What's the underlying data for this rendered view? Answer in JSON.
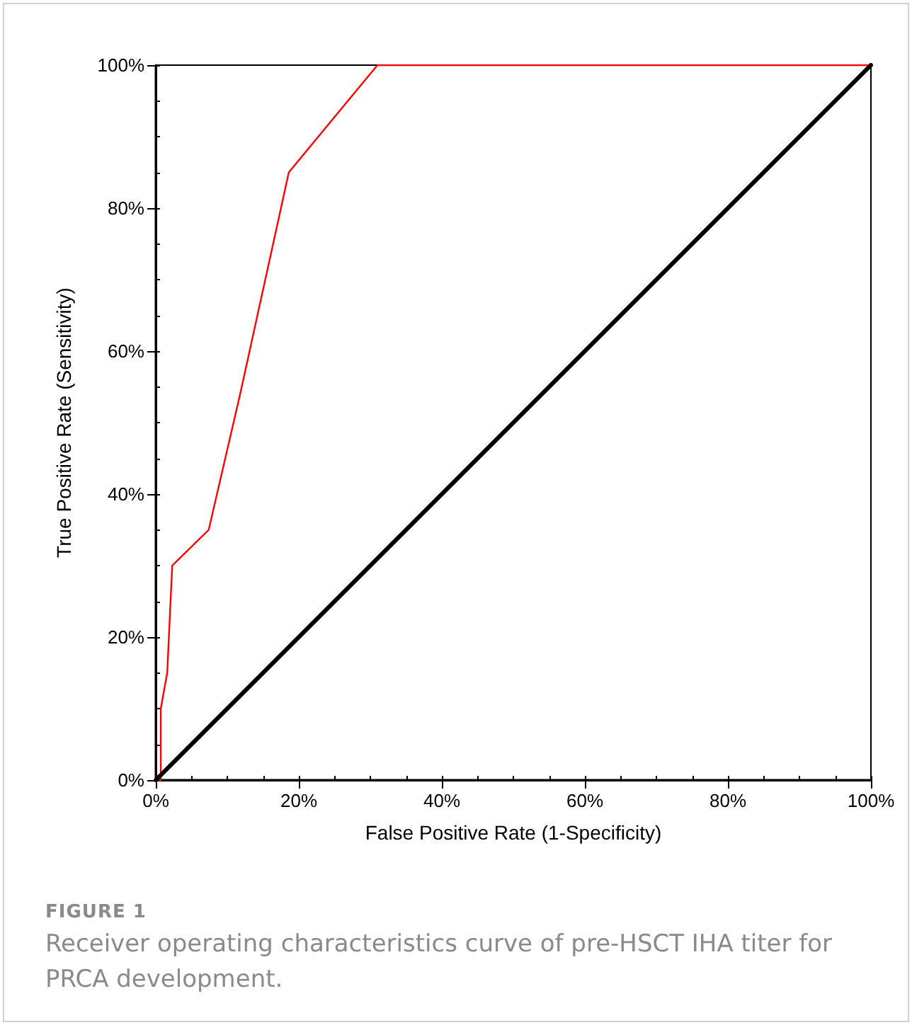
{
  "chart_data": {
    "type": "line",
    "xlabel": "False Positive Rate (1-Specificity)",
    "ylabel": "True Positive Rate (Sensitivity)",
    "annotations": [
      "FIGURE 1",
      "Receiver operating characteristics curve of pre-HSCT IHA titer for PRCA development."
    ],
    "series": [
      {
        "color": "#ff0000",
        "x": [
          0,
          0.7,
          0.7,
          1.6,
          2.3,
          7.4,
          11.8,
          18.6,
          31,
          100
        ],
        "values": [
          0,
          0,
          10,
          15,
          30,
          35,
          54,
          85,
          100,
          100
        ]
      },
      {
        "color": "#000000",
        "x": [
          0,
          100
        ],
        "values": [
          0,
          100
        ]
      }
    ],
    "xlim": [
      0,
      100
    ],
    "ylim": [
      0,
      100
    ],
    "xticks": [
      {
        "value": 0,
        "label": "0%"
      },
      {
        "value": 20,
        "label": "20%"
      },
      {
        "value": 40,
        "label": "40%"
      },
      {
        "value": 60,
        "label": "60%"
      },
      {
        "value": 80,
        "label": "80%"
      },
      {
        "value": 100,
        "label": "100%"
      }
    ],
    "yticks": [
      {
        "value": 0,
        "label": "0%"
      },
      {
        "value": 20,
        "label": "20%"
      },
      {
        "value": 40,
        "label": "40%"
      },
      {
        "value": 60,
        "label": "60%"
      },
      {
        "value": 80,
        "label": "80%"
      },
      {
        "value": 100,
        "label": "100%"
      }
    ],
    "grid": false,
    "marker": "none",
    "line_style": "solid"
  }
}
